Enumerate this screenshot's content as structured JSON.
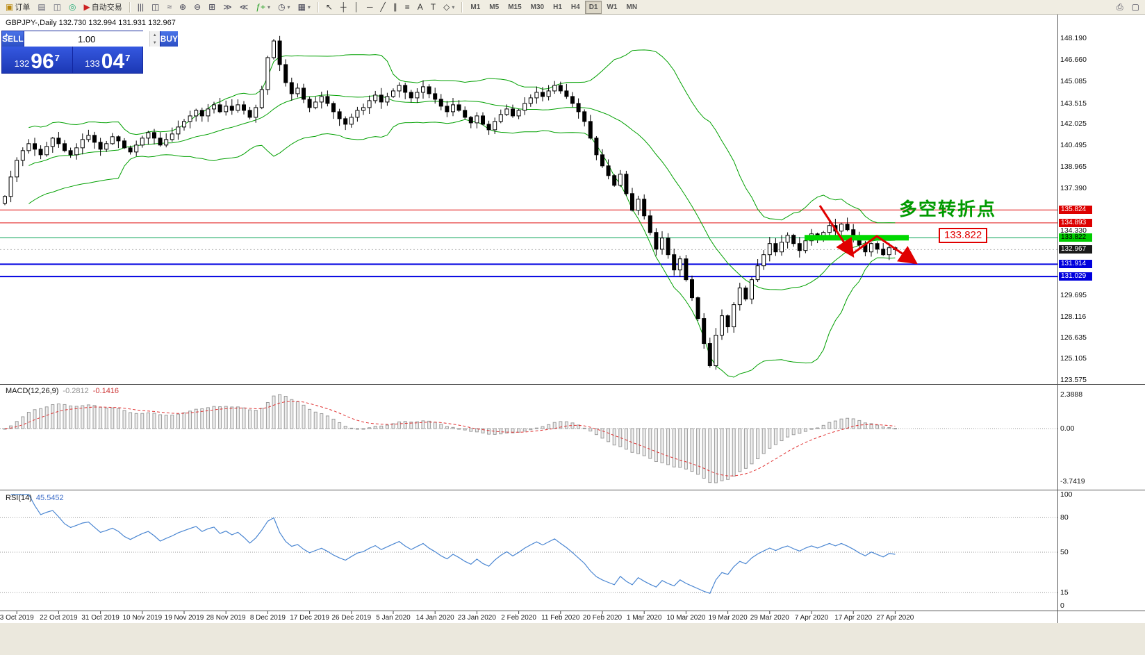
{
  "toolbar": {
    "left_buttons": [
      {
        "name": "new-order-button",
        "glyph": "▣",
        "color": "#b8860b",
        "label": "订单"
      },
      {
        "name": "chart-window-icon",
        "glyph": "▤",
        "color": "#667",
        "label": ""
      },
      {
        "name": "profile-icon",
        "glyph": "◫",
        "color": "#667",
        "label": ""
      },
      {
        "name": "market-watch-icon",
        "glyph": "◎",
        "color": "#2a7",
        "label": ""
      },
      {
        "name": "autotrade-button",
        "glyph": "▶",
        "color": "#cc2222",
        "label": "自动交易"
      }
    ],
    "chart_buttons": [
      {
        "name": "bar-chart-icon",
        "glyph": "|||",
        "color": "#445"
      },
      {
        "name": "candlestick-chart-icon",
        "glyph": "◫",
        "color": "#445"
      },
      {
        "name": "line-chart-icon",
        "glyph": "≈",
        "color": "#445"
      },
      {
        "name": "zoom-in-icon",
        "glyph": "⊕",
        "color": "#445"
      },
      {
        "name": "zoom-out-icon",
        "glyph": "⊖",
        "color": "#445"
      },
      {
        "name": "tile-windows-icon",
        "glyph": "⊞",
        "color": "#445"
      },
      {
        "name": "auto-scroll-icon",
        "glyph": "≫",
        "color": "#445"
      },
      {
        "name": "chart-shift-icon",
        "glyph": "≪",
        "color": "#445"
      },
      {
        "name": "indicators-icon",
        "glyph": "ƒ+",
        "color": "#1f9d1f",
        "dropdown": true
      },
      {
        "name": "periods-icon",
        "glyph": "◷",
        "color": "#445",
        "dropdown": true
      },
      {
        "name": "templates-icon",
        "glyph": "▦",
        "color": "#445",
        "dropdown": true
      }
    ],
    "draw_buttons": [
      {
        "name": "cursor-icon",
        "glyph": "↖",
        "color": "#333"
      },
      {
        "name": "crosshair-icon",
        "glyph": "┼",
        "color": "#333"
      },
      {
        "name": "vline-icon",
        "glyph": "│",
        "color": "#333"
      },
      {
        "name": "hline-icon",
        "glyph": "─",
        "color": "#333"
      },
      {
        "name": "trendline-icon",
        "glyph": "╱",
        "color": "#333"
      },
      {
        "name": "channel-icon",
        "glyph": "∥",
        "color": "#333"
      },
      {
        "name": "fibonacci-icon",
        "glyph": "≡",
        "color": "#333"
      },
      {
        "name": "text-icon",
        "glyph": "A",
        "color": "#333"
      },
      {
        "name": "label-icon",
        "glyph": "T",
        "color": "#333"
      },
      {
        "name": "shapes-icon",
        "glyph": "◇",
        "color": "#333",
        "dropdown": true
      }
    ],
    "timeframes": [
      "M1",
      "M5",
      "M15",
      "M30",
      "H1",
      "H4",
      "D1",
      "W1",
      "MN"
    ],
    "active_timeframe": "D1",
    "right_buttons": [
      {
        "name": "print-icon",
        "glyph": "⎙",
        "color": "#445"
      },
      {
        "name": "print-preview-icon",
        "glyph": "▢",
        "color": "#445"
      }
    ]
  },
  "chart": {
    "title": "GBPJPY-,Daily 132.730 132.994 131.931 132.967",
    "symbol": "GBPJPY-",
    "period": "Daily",
    "open": "132.730",
    "high": "132.994",
    "low": "131.931",
    "close": "132.967"
  },
  "trade_panel": {
    "sell_label": "SELL",
    "buy_label": "BUY",
    "volume": "1.00",
    "sell_price": {
      "prefix": "132",
      "big": "96",
      "sup": "7"
    },
    "buy_price": {
      "prefix": "133",
      "big": "04",
      "sup": "7"
    },
    "toggle_icon": "▲"
  },
  "annotations": {
    "turning_point_text": "多空转折点",
    "level_label": "133.822"
  },
  "price_scale": {
    "plain_labels": [
      "148.190",
      "146.660",
      "145.085",
      "143.515",
      "142.025",
      "140.495",
      "138.965",
      "137.390",
      "134.330",
      "129.695",
      "128.116",
      "126.635",
      "125.105",
      "123.575"
    ],
    "tagged_labels": [
      {
        "value": "135.824",
        "price": 135.824,
        "bg": "#dd0000",
        "fg": "#ffffff"
      },
      {
        "value": "134.893",
        "price": 134.893,
        "bg": "#dd0000",
        "fg": "#ffffff"
      },
      {
        "value": "133.822",
        "price": 133.822,
        "bg": "#00cc00",
        "fg": "#000000"
      },
      {
        "value": "132.967",
        "price": 132.967,
        "bg": "#1a1a1a",
        "fg": "#ffffff"
      },
      {
        "value": "131.914",
        "price": 131.914,
        "bg": "#0000dd",
        "fg": "#ffffff"
      },
      {
        "value": "131.029",
        "price": 131.029,
        "bg": "#0000dd",
        "fg": "#ffffff"
      }
    ]
  },
  "hlines": [
    {
      "price": 135.824,
      "color": "#e01010",
      "width": 1
    },
    {
      "price": 134.893,
      "color": "#e01010",
      "width": 1
    },
    {
      "price": 133.822,
      "color": "#00a050",
      "width": 1
    },
    {
      "price": 131.914,
      "color": "#0000e0",
      "width": 2
    },
    {
      "price": 131.029,
      "color": "#0000e0",
      "width": 2
    }
  ],
  "current_price": 132.967,
  "highlight_level": 133.822,
  "macd": {
    "label": "MACD(12,26,9)",
    "value1": "-0.2812",
    "value2": "-0.1416",
    "scale_max": "2.3888",
    "scale_zero": "0.00",
    "scale_min": "-3.7419"
  },
  "rsi": {
    "label": "RSI(14)",
    "value": "45.5452",
    "levels": [
      "100",
      "80",
      "50",
      "15",
      "0"
    ],
    "level_values": [
      100,
      80,
      50,
      15,
      0
    ]
  },
  "dates": [
    "3 Oct 2019",
    "22 Oct 2019",
    "31 Oct 2019",
    "10 Nov 2019",
    "19 Nov 2019",
    "28 Nov 2019",
    "8 Dec 2019",
    "17 Dec 2019",
    "26 Dec 2019",
    "5 Jan 2020",
    "14 Jan 2020",
    "23 Jan 2020",
    "2 Feb 2020",
    "11 Feb 2020",
    "20 Feb 2020",
    "1 Mar 2020",
    "10 Mar 2020",
    "19 Mar 2020",
    "29 Mar 2020",
    "7 Apr 2020",
    "17 Apr 2020",
    "27 Apr 2020"
  ],
  "chart_data": {
    "type": "candlestick",
    "symbol": "GBPJPY-",
    "timeframe": "Daily",
    "indicators": [
      "Bollinger Bands(20,2)",
      "MACD(12,26,9)",
      "RSI(14)"
    ],
    "key_levels": [
      135.824,
      134.893,
      133.822,
      132.967,
      131.914,
      131.029
    ],
    "visible_price_range": [
      123.575,
      148.19
    ],
    "closes": [
      136.8,
      138.2,
      139.4,
      140.1,
      140.6,
      140.2,
      139.8,
      140.4,
      141.0,
      140.6,
      140.1,
      139.8,
      140.3,
      140.9,
      141.2,
      140.7,
      140.2,
      140.6,
      141.1,
      140.8,
      140.3,
      140.0,
      140.5,
      141.0,
      141.4,
      141.0,
      140.5,
      140.9,
      141.3,
      141.8,
      142.2,
      142.6,
      143.0,
      142.6,
      143.1,
      143.4,
      142.9,
      143.3,
      143.0,
      143.4,
      143.0,
      142.5,
      143.2,
      144.5,
      146.8,
      148.0,
      146.3,
      145.0,
      144.2,
      144.6,
      143.8,
      143.2,
      143.6,
      144.0,
      143.5,
      142.9,
      142.4,
      142.0,
      142.5,
      143.0,
      143.2,
      143.7,
      144.1,
      143.6,
      144.0,
      144.4,
      144.8,
      144.3,
      143.9,
      144.3,
      144.7,
      144.2,
      143.8,
      143.3,
      142.9,
      143.4,
      143.0,
      142.5,
      142.1,
      142.6,
      142.0,
      141.6,
      142.2,
      142.7,
      143.1,
      142.6,
      143.0,
      143.5,
      143.9,
      144.3,
      144.0,
      144.4,
      144.8,
      144.4,
      144.0,
      143.5,
      142.9,
      142.2,
      141.0,
      139.8,
      139.0,
      138.3,
      137.6,
      138.4,
      137.0,
      135.8,
      136.6,
      135.4,
      134.2,
      133.0,
      133.8,
      132.6,
      131.5,
      132.3,
      130.8,
      129.5,
      128.0,
      126.2,
      124.6,
      126.8,
      128.2,
      127.4,
      129.0,
      130.2,
      129.4,
      130.8,
      131.8,
      132.6,
      133.4,
      132.8,
      133.5,
      134.0,
      133.4,
      132.9,
      133.6,
      134.1,
      133.7,
      134.2,
      134.7,
      134.3,
      134.8,
      134.4,
      133.9,
      133.3,
      132.8,
      133.4,
      133.0,
      132.6,
      133.1,
      132.967
    ]
  }
}
